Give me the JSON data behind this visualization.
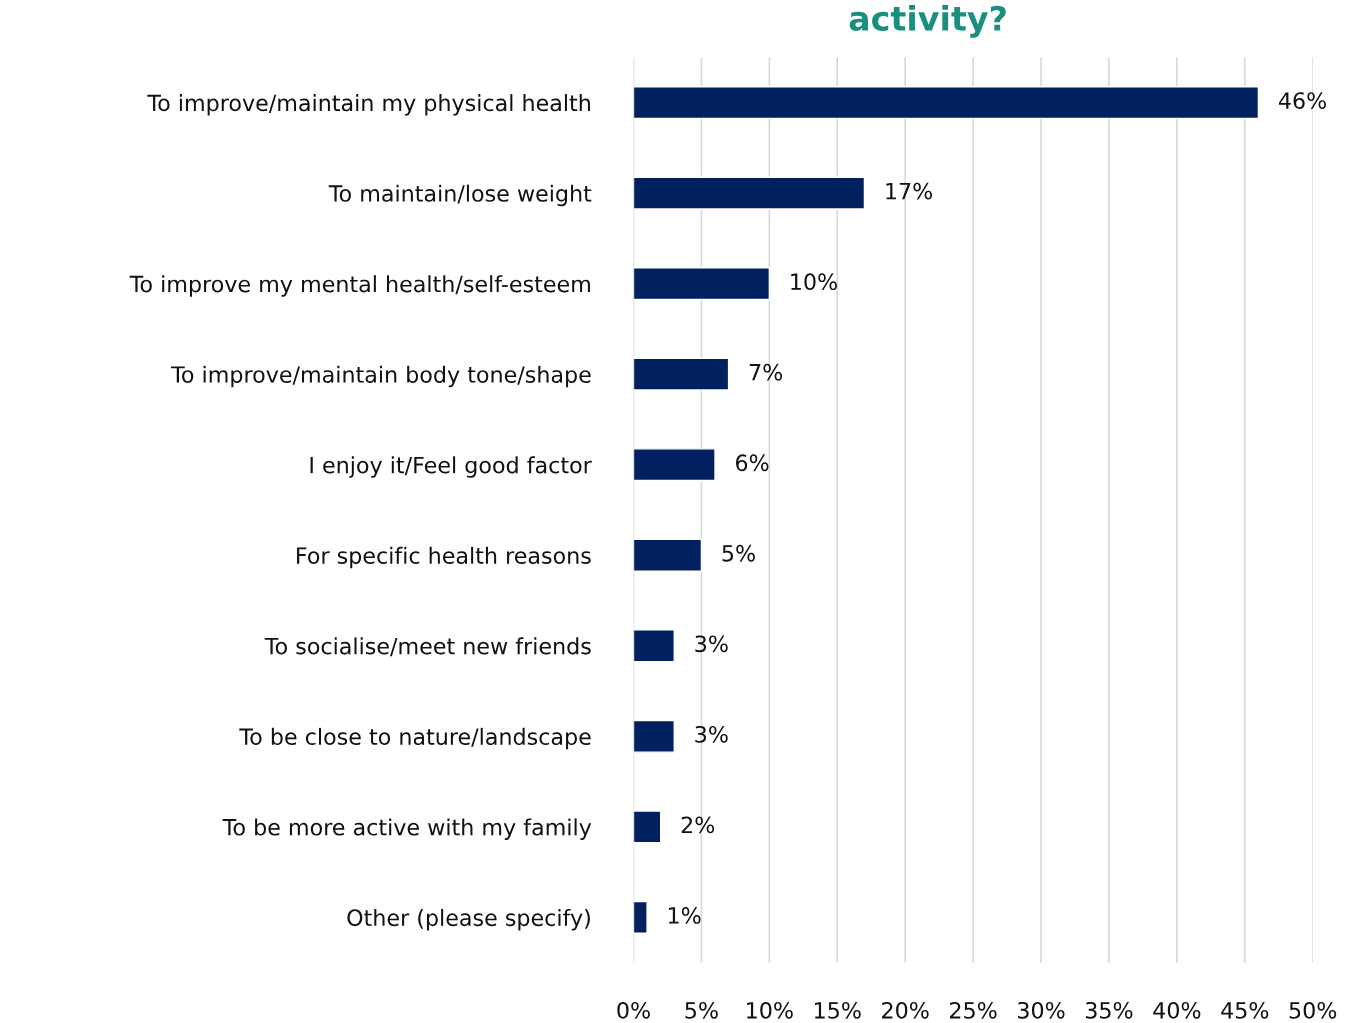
{
  "chart_data": {
    "type": "bar",
    "orientation": "horizontal",
    "title": "activity?",
    "categories": [
      "To improve/maintain my physical health",
      "To maintain/lose weight",
      "To improve my mental health/self-esteem",
      "To improve/maintain body tone/shape",
      "I enjoy it/Feel good factor",
      "For specific health reasons",
      "To socialise/meet new friends",
      "To be close to nature/landscape",
      "To be more active with my family",
      "Other (please specify)"
    ],
    "values": [
      46,
      17,
      10,
      7,
      6,
      5,
      3,
      3,
      2,
      1
    ],
    "value_labels": [
      "46%",
      "17%",
      "10%",
      "7%",
      "6%",
      "5%",
      "3%",
      "3%",
      "2%",
      "1%"
    ],
    "color": "#002060",
    "xlim": [
      0,
      50
    ],
    "xticks": [
      {
        "value": 0,
        "label": "0%"
      },
      {
        "value": 5,
        "label": "5%"
      },
      {
        "value": 10,
        "label": "10%"
      },
      {
        "value": 15,
        "label": "15%"
      },
      {
        "value": 20,
        "label": "20%"
      },
      {
        "value": 25,
        "label": "25%"
      },
      {
        "value": 30,
        "label": "30%"
      },
      {
        "value": 35,
        "label": "35%"
      },
      {
        "value": 40,
        "label": "40%"
      },
      {
        "value": 45,
        "label": "45%"
      },
      {
        "value": 50,
        "label": "50%"
      }
    ],
    "grid": "x",
    "legend": false
  }
}
